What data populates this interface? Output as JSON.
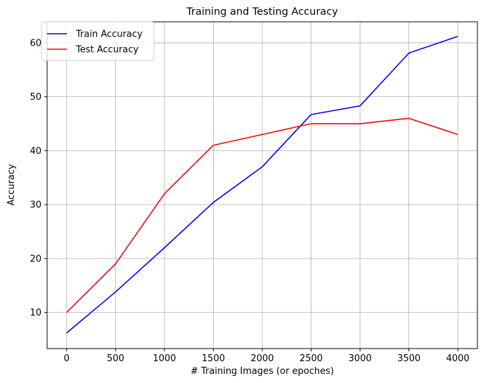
{
  "chart_data": {
    "type": "line",
    "title": "Training and Testing Accuracy",
    "xlabel": "# Training Images (or epoches)",
    "ylabel": "Accuracy",
    "x": [
      0,
      500,
      1000,
      1500,
      2000,
      2500,
      3000,
      3500,
      4000
    ],
    "xticks": [
      0,
      500,
      1000,
      1500,
      2000,
      2500,
      3000,
      3500,
      4000
    ],
    "yticks": [
      10,
      20,
      30,
      40,
      50,
      60
    ],
    "xlim": [
      -200,
      4200
    ],
    "ylim": [
      3.3,
      63.9
    ],
    "grid": true,
    "legend_position": "top-left",
    "series": [
      {
        "name": "Train Accuracy",
        "color": "#0000ff",
        "values": [
          6.2,
          13.8,
          22.0,
          30.4,
          37.0,
          46.7,
          48.3,
          58.1,
          61.2
        ]
      },
      {
        "name": "Test Accuracy",
        "color": "#ff0000",
        "values": [
          10.0,
          19.0,
          32.0,
          41.0,
          43.0,
          45.0,
          45.0,
          46.0,
          43.0
        ]
      }
    ]
  }
}
